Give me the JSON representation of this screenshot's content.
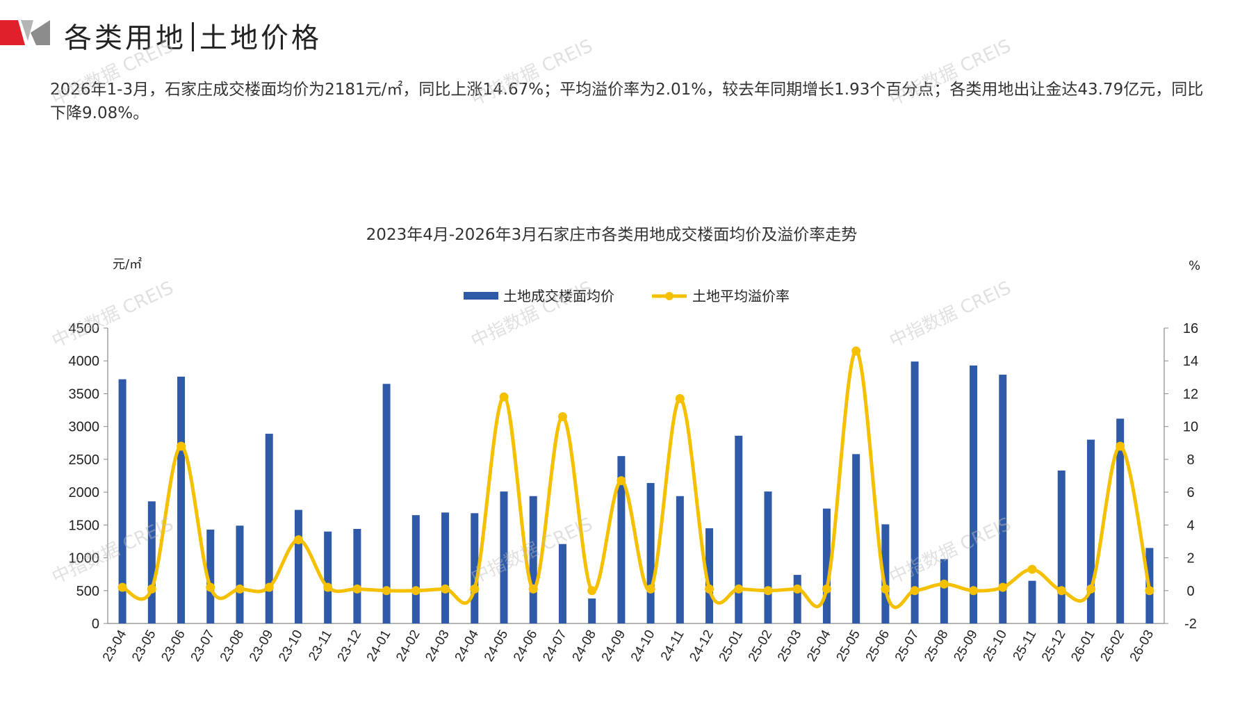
{
  "header": {
    "title_left": "各类用地",
    "title_right": "土地价格"
  },
  "summary": {
    "text": "2026年1-3月，石家庄成交楼面均价为2181元/㎡，同比上涨14.67%；平均溢价率为2.01%，较去年同期增长1.93个百分点；各类用地出让金达43.79亿元，同比下降9.08%。"
  },
  "watermark": {
    "text": "中指数据 CREIS"
  },
  "colors": {
    "bar": "#2E5AA8",
    "line": "#F5C000",
    "brand_red": "#E0202A",
    "brand_gray": "#8C8C8C"
  },
  "chart_data": {
    "type": "bar+line",
    "title": "2023年4月-2026年3月石家庄市各类用地成交楼面均价及溢价率走势",
    "y_left_unit": "元/㎡",
    "y_right_unit": "%",
    "ylim_left": [
      0,
      4500
    ],
    "ylim_right": [
      -2,
      16
    ],
    "y_left_ticks": [
      "0",
      "500",
      "1000",
      "1500",
      "2000",
      "2500",
      "3000",
      "3500",
      "4000",
      "4500"
    ],
    "y_right_ticks": [
      "-2",
      "0",
      "2",
      "4",
      "6",
      "8",
      "10",
      "12",
      "14",
      "16"
    ],
    "legend_position": "top-center",
    "categories": [
      "23-04",
      "23-05",
      "23-06",
      "23-07",
      "23-08",
      "23-09",
      "23-10",
      "23-11",
      "23-12",
      "24-01",
      "24-02",
      "24-03",
      "24-04",
      "24-05",
      "24-06",
      "24-07",
      "24-08",
      "24-09",
      "24-10",
      "24-11",
      "24-12",
      "25-01",
      "25-02",
      "25-03",
      "25-04",
      "25-05",
      "25-06",
      "25-07",
      "25-08",
      "25-09",
      "25-10",
      "25-11",
      "25-12",
      "26-01",
      "26-02",
      "26-03"
    ],
    "series": [
      {
        "name": "土地成交楼面均价",
        "type": "bar",
        "axis": "left",
        "values": [
          3720,
          1860,
          3760,
          1430,
          1490,
          2890,
          1730,
          1400,
          1440,
          3650,
          1650,
          1690,
          1680,
          2010,
          1940,
          1210,
          380,
          2550,
          2140,
          1940,
          1450,
          2860,
          2010,
          740,
          1750,
          2580,
          1510,
          3990,
          980,
          3930,
          3790,
          650,
          2330,
          2800,
          3120,
          1150
        ]
      },
      {
        "name": "土地平均溢价率",
        "type": "line",
        "axis": "right",
        "values": [
          0.2,
          0.1,
          8.8,
          0.2,
          0.1,
          0.2,
          3.1,
          0.2,
          0.1,
          0.0,
          0.0,
          0.1,
          0.1,
          11.8,
          0.1,
          10.6,
          0.0,
          6.7,
          0.1,
          11.7,
          0.1,
          0.1,
          0.0,
          0.1,
          0.1,
          14.6,
          0.1,
          0.0,
          0.4,
          0.0,
          0.2,
          1.3,
          0.0,
          0.1,
          8.8,
          0.0
        ]
      }
    ]
  }
}
